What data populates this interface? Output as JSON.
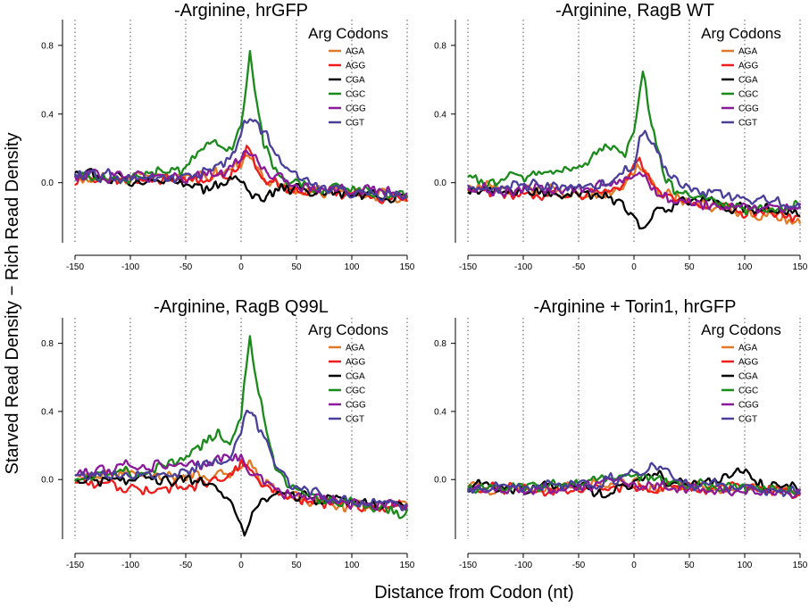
{
  "figure": {
    "ylabel": "Starved Read Density − Rich Read Density",
    "xlabel": "Distance from Codon (nt)"
  },
  "legend": {
    "title": "Arg Codons",
    "entries": [
      {
        "label": "AGA",
        "color": "#e07a28"
      },
      {
        "label": "AGG",
        "color": "#ee1c1c"
      },
      {
        "label": "CGA",
        "color": "#000000"
      },
      {
        "label": "CGC",
        "color": "#1a8a1a"
      },
      {
        "label": "CGG",
        "color": "#8a1a9a"
      },
      {
        "label": "CGT",
        "color": "#4a3f9a"
      }
    ]
  },
  "chart_data": [
    {
      "type": "line",
      "title": "-Arginine, hrGFP",
      "xlim": [
        -150,
        150
      ],
      "ylim": [
        -0.35,
        0.95
      ],
      "xticks": [
        -150,
        -100,
        -50,
        0,
        50,
        100,
        150
      ],
      "yticks": [
        0.0,
        0.4,
        0.8
      ],
      "ytick_labels": [
        "0.0",
        "0.4",
        "0.8"
      ],
      "gridlines_x": [
        -150,
        -100,
        -50,
        0,
        50,
        100,
        150
      ],
      "legend_position": "top-right",
      "series": [
        {
          "name": "AGA",
          "x": [
            -150,
            -100,
            -50,
            -25,
            -10,
            0,
            5,
            10,
            20,
            40,
            60,
            100,
            150
          ],
          "y": [
            0.03,
            0.02,
            0.03,
            0.04,
            0.09,
            0.13,
            0.15,
            0.11,
            0.02,
            -0.02,
            -0.04,
            -0.06,
            -0.08
          ]
        },
        {
          "name": "AGG",
          "x": [
            -150,
            -100,
            -50,
            -25,
            -10,
            0,
            5,
            10,
            20,
            40,
            60,
            100,
            150
          ],
          "y": [
            0.03,
            0.01,
            0.01,
            0.02,
            0.06,
            0.14,
            0.19,
            0.12,
            0.03,
            -0.03,
            -0.05,
            -0.06,
            -0.09
          ]
        },
        {
          "name": "CGA",
          "x": [
            -150,
            -100,
            -50,
            -25,
            -10,
            0,
            5,
            10,
            20,
            40,
            60,
            100,
            150
          ],
          "y": [
            0.05,
            0.02,
            0.0,
            -0.04,
            0.0,
            0.04,
            -0.02,
            -0.08,
            -0.07,
            -0.03,
            -0.05,
            -0.07,
            -0.08
          ]
        },
        {
          "name": "CGC",
          "x": [
            -150,
            -100,
            -50,
            -30,
            -20,
            -10,
            0,
            5,
            8,
            12,
            20,
            30,
            40,
            60,
            100,
            150
          ],
          "y": [
            0.03,
            0.03,
            0.08,
            0.22,
            0.22,
            0.18,
            0.32,
            0.6,
            0.77,
            0.55,
            0.22,
            0.08,
            0.02,
            -0.02,
            -0.05,
            -0.08
          ]
        },
        {
          "name": "CGG",
          "x": [
            -150,
            -100,
            -50,
            -25,
            -10,
            0,
            5,
            10,
            20,
            40,
            60,
            100,
            150
          ],
          "y": [
            0.05,
            0.04,
            0.03,
            0.05,
            0.08,
            0.14,
            0.19,
            0.15,
            0.06,
            0.0,
            -0.03,
            -0.05,
            -0.07
          ]
        },
        {
          "name": "CGT",
          "x": [
            -150,
            -100,
            -50,
            -25,
            -10,
            0,
            5,
            10,
            20,
            30,
            40,
            60,
            100,
            150
          ],
          "y": [
            0.04,
            0.03,
            0.04,
            0.07,
            0.12,
            0.28,
            0.37,
            0.38,
            0.3,
            0.18,
            0.08,
            0.0,
            -0.05,
            -0.08
          ]
        }
      ]
    },
    {
      "type": "line",
      "title": "-Arginine, RagB WT",
      "xlim": [
        -150,
        150
      ],
      "ylim": [
        -0.35,
        0.95
      ],
      "xticks": [
        -150,
        -100,
        -50,
        0,
        50,
        100,
        150
      ],
      "yticks": [
        0.0,
        0.4,
        0.8
      ],
      "ytick_labels": [
        "0.0",
        "0.4",
        "0.8"
      ],
      "gridlines_x": [
        -150,
        -100,
        -50,
        0,
        50,
        100,
        150
      ],
      "legend_position": "top-right",
      "series": [
        {
          "name": "AGA",
          "x": [
            -150,
            -100,
            -50,
            -25,
            -10,
            0,
            5,
            10,
            20,
            40,
            60,
            100,
            150
          ],
          "y": [
            -0.03,
            -0.04,
            -0.06,
            -0.05,
            0.0,
            0.07,
            0.12,
            0.06,
            -0.05,
            -0.1,
            -0.12,
            -0.17,
            -0.22
          ]
        },
        {
          "name": "AGG",
          "x": [
            -150,
            -100,
            -50,
            -25,
            -10,
            0,
            5,
            10,
            20,
            40,
            60,
            100,
            150
          ],
          "y": [
            -0.04,
            -0.06,
            -0.07,
            -0.05,
            0.0,
            0.1,
            0.16,
            0.08,
            -0.05,
            -0.1,
            -0.12,
            -0.17,
            -0.2
          ]
        },
        {
          "name": "CGA",
          "x": [
            -150,
            -100,
            -50,
            -25,
            -10,
            0,
            5,
            10,
            20,
            40,
            60,
            100,
            150
          ],
          "y": [
            -0.05,
            -0.06,
            -0.07,
            -0.08,
            -0.12,
            -0.2,
            -0.25,
            -0.24,
            -0.18,
            -0.12,
            -0.1,
            -0.15,
            -0.18
          ]
        },
        {
          "name": "CGC",
          "x": [
            -150,
            -100,
            -50,
            -30,
            -20,
            -10,
            0,
            5,
            8,
            12,
            20,
            30,
            40,
            60,
            100,
            150
          ],
          "y": [
            0.0,
            0.04,
            0.08,
            0.18,
            0.2,
            0.15,
            0.3,
            0.55,
            0.68,
            0.5,
            0.2,
            0.0,
            -0.07,
            -0.1,
            -0.15,
            -0.15
          ]
        },
        {
          "name": "CGG",
          "x": [
            -150,
            -100,
            -50,
            -25,
            -10,
            0,
            5,
            10,
            20,
            40,
            60,
            100,
            150
          ],
          "y": [
            -0.04,
            -0.04,
            -0.03,
            -0.02,
            0.0,
            0.04,
            0.06,
            0.02,
            -0.05,
            -0.1,
            -0.12,
            -0.14,
            -0.15
          ]
        },
        {
          "name": "CGT",
          "x": [
            -150,
            -100,
            -50,
            -25,
            -10,
            0,
            5,
            10,
            20,
            30,
            40,
            60,
            100,
            150
          ],
          "y": [
            -0.02,
            -0.02,
            -0.02,
            0.0,
            0.05,
            0.12,
            0.25,
            0.3,
            0.2,
            0.08,
            0.0,
            -0.05,
            -0.1,
            -0.13
          ]
        }
      ]
    },
    {
      "type": "line",
      "title": "-Arginine, RagB Q99L",
      "xlim": [
        -150,
        150
      ],
      "ylim": [
        -0.35,
        0.95
      ],
      "xticks": [
        -150,
        -100,
        -50,
        0,
        50,
        100,
        150
      ],
      "yticks": [
        0.0,
        0.4,
        0.8
      ],
      "ytick_labels": [
        "0.0",
        "0.4",
        "0.8"
      ],
      "gridlines_x": [
        -150,
        -100,
        -50,
        0,
        50,
        100,
        150
      ],
      "legend_position": "top-right",
      "series": [
        {
          "name": "AGA",
          "x": [
            -150,
            -100,
            -50,
            -25,
            -10,
            0,
            5,
            10,
            20,
            40,
            60,
            100,
            150
          ],
          "y": [
            0.05,
            0.04,
            0.02,
            0.02,
            0.04,
            0.08,
            0.11,
            0.08,
            -0.02,
            -0.08,
            -0.12,
            -0.16,
            -0.17
          ]
        },
        {
          "name": "AGG",
          "x": [
            -150,
            -100,
            -50,
            -25,
            -10,
            0,
            5,
            10,
            20,
            40,
            60,
            100,
            150
          ],
          "y": [
            0.01,
            -0.05,
            -0.05,
            -0.02,
            0.03,
            0.08,
            0.1,
            0.05,
            -0.05,
            -0.1,
            -0.12,
            -0.15,
            -0.16
          ]
        },
        {
          "name": "CGA",
          "x": [
            -150,
            -100,
            -50,
            -25,
            -10,
            0,
            3,
            10,
            20,
            40,
            60,
            100,
            150
          ],
          "y": [
            0.0,
            0.0,
            0.0,
            -0.05,
            -0.1,
            -0.25,
            -0.33,
            -0.2,
            -0.12,
            -0.08,
            -0.1,
            -0.13,
            -0.15
          ]
        },
        {
          "name": "CGC",
          "x": [
            -150,
            -100,
            -50,
            -30,
            -20,
            -10,
            0,
            5,
            8,
            12,
            20,
            30,
            40,
            60,
            100,
            150
          ],
          "y": [
            0.02,
            0.04,
            0.1,
            0.22,
            0.28,
            0.2,
            0.4,
            0.7,
            0.86,
            0.68,
            0.4,
            0.1,
            0.0,
            -0.1,
            -0.15,
            -0.2
          ]
        },
        {
          "name": "CGG",
          "x": [
            -150,
            -100,
            -50,
            -25,
            -10,
            0,
            5,
            10,
            20,
            40,
            60,
            100,
            150
          ],
          "y": [
            0.03,
            0.08,
            0.08,
            0.1,
            0.14,
            0.12,
            0.08,
            0.05,
            -0.03,
            -0.08,
            -0.1,
            -0.14,
            -0.16
          ]
        },
        {
          "name": "CGT",
          "x": [
            -150,
            -100,
            -50,
            -25,
            -10,
            0,
            5,
            10,
            20,
            30,
            40,
            60,
            100,
            150
          ],
          "y": [
            0.02,
            0.03,
            0.04,
            0.1,
            0.15,
            0.28,
            0.4,
            0.41,
            0.25,
            0.1,
            0.0,
            -0.08,
            -0.12,
            -0.16
          ]
        }
      ]
    },
    {
      "type": "line",
      "title": "-Arginine + Torin1, hrGFP",
      "xlim": [
        -150,
        150
      ],
      "ylim": [
        -0.35,
        0.95
      ],
      "xticks": [
        -150,
        -100,
        -50,
        0,
        50,
        100,
        150
      ],
      "yticks": [
        0.0,
        0.4,
        0.8
      ],
      "ytick_labels": [
        "0.0",
        "0.4",
        "0.8"
      ],
      "gridlines_x": [
        -150,
        -100,
        -50,
        0,
        50,
        100,
        150
      ],
      "legend_position": "top-right",
      "series": [
        {
          "name": "AGA",
          "x": [
            -150,
            -100,
            -50,
            0,
            50,
            100,
            150
          ],
          "y": [
            -0.05,
            -0.05,
            -0.04,
            -0.03,
            -0.05,
            -0.06,
            -0.07
          ]
        },
        {
          "name": "AGG",
          "x": [
            -150,
            -100,
            -50,
            0,
            50,
            100,
            150
          ],
          "y": [
            -0.06,
            -0.06,
            -0.05,
            -0.04,
            -0.05,
            -0.06,
            -0.08
          ]
        },
        {
          "name": "CGA",
          "x": [
            -150,
            -100,
            -50,
            -20,
            0,
            20,
            50,
            80,
            100,
            120,
            150
          ],
          "y": [
            -0.04,
            -0.05,
            -0.04,
            -0.08,
            0.0,
            0.02,
            -0.02,
            0.0,
            0.05,
            -0.04,
            -0.06
          ]
        },
        {
          "name": "CGC",
          "x": [
            -150,
            -100,
            -50,
            0,
            50,
            100,
            150
          ],
          "y": [
            -0.04,
            -0.04,
            -0.03,
            0.02,
            -0.03,
            -0.05,
            -0.06
          ]
        },
        {
          "name": "CGG",
          "x": [
            -150,
            -100,
            -50,
            0,
            50,
            100,
            150
          ],
          "y": [
            -0.05,
            -0.06,
            -0.05,
            -0.02,
            -0.06,
            -0.07,
            -0.08
          ]
        },
        {
          "name": "CGT",
          "x": [
            -150,
            -100,
            -50,
            0,
            25,
            50,
            100,
            150
          ],
          "y": [
            -0.05,
            -0.05,
            -0.04,
            0.04,
            0.08,
            -0.03,
            -0.05,
            -0.06
          ]
        }
      ]
    }
  ]
}
